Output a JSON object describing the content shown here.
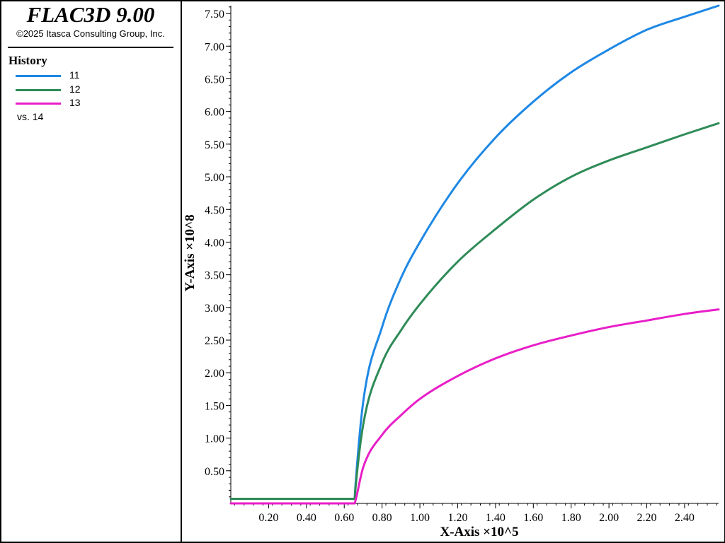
{
  "app": {
    "title": "FLAC3D 9.00",
    "copyright": "©2025 Itasca Consulting Group, Inc."
  },
  "legend": {
    "title": "History",
    "items": [
      {
        "label": "11",
        "color": "#1e88e5"
      },
      {
        "label": "12",
        "color": "#2e8b57"
      },
      {
        "label": "13",
        "color": "#e91ec8"
      }
    ],
    "vs_label": "vs. 14"
  },
  "chart_data": {
    "type": "line",
    "xlabel": "X-Axis ×10^5",
    "ylabel": "Y-Axis ×10^8",
    "xlim": [
      0.0,
      2.58
    ],
    "ylim": [
      0.0,
      7.62
    ],
    "x_ticks": [
      0.2,
      0.4,
      0.6,
      0.8,
      1.0,
      1.2,
      1.4,
      1.6,
      1.8,
      2.0,
      2.2,
      2.4
    ],
    "x_tick_labels": [
      "0.20",
      "0.40",
      "0.60",
      "0.80",
      "1.00",
      "1.20",
      "1.40",
      "1.60",
      "1.80",
      "2.00",
      "2.20",
      "2.40"
    ],
    "y_ticks": [
      0.5,
      1.0,
      1.5,
      2.0,
      2.5,
      3.0,
      3.5,
      4.0,
      4.5,
      5.0,
      5.5,
      6.0,
      6.5,
      7.0,
      7.5
    ],
    "y_tick_labels": [
      "0.50",
      "1.00",
      "1.50",
      "2.00",
      "2.50",
      "3.00",
      "3.50",
      "4.00",
      "4.50",
      "5.00",
      "5.50",
      "6.00",
      "6.50",
      "7.00",
      "7.50"
    ],
    "grid": false,
    "legend_position": "left panel",
    "series": [
      {
        "name": "11",
        "color": "#1e88e5",
        "x": [
          0.0,
          0.655,
          0.66,
          0.7,
          0.8,
          0.9,
          1.0,
          1.2,
          1.4,
          1.6,
          1.8,
          2.0,
          2.2,
          2.4,
          2.58
        ],
        "y": [
          0.07,
          0.07,
          0.3,
          1.55,
          2.7,
          3.45,
          4.0,
          4.9,
          5.6,
          6.15,
          6.6,
          6.95,
          7.25,
          7.45,
          7.62
        ]
      },
      {
        "name": "12",
        "color": "#2e8b57",
        "x": [
          0.0,
          0.655,
          0.66,
          0.7,
          0.8,
          0.9,
          1.0,
          1.2,
          1.4,
          1.6,
          1.8,
          2.0,
          2.2,
          2.4,
          2.58
        ],
        "y": [
          0.07,
          0.07,
          0.25,
          1.2,
          2.15,
          2.65,
          3.05,
          3.7,
          4.2,
          4.65,
          5.0,
          5.25,
          5.45,
          5.65,
          5.82
        ]
      },
      {
        "name": "13",
        "color": "#e91ec8",
        "x": [
          0.0,
          0.655,
          0.66,
          0.7,
          0.8,
          0.9,
          1.0,
          1.2,
          1.4,
          1.6,
          1.8,
          2.0,
          2.2,
          2.4,
          2.58
        ],
        "y": [
          0.0,
          0.0,
          0.05,
          0.55,
          1.05,
          1.35,
          1.6,
          1.95,
          2.22,
          2.42,
          2.57,
          2.7,
          2.8,
          2.9,
          2.97
        ]
      }
    ]
  }
}
